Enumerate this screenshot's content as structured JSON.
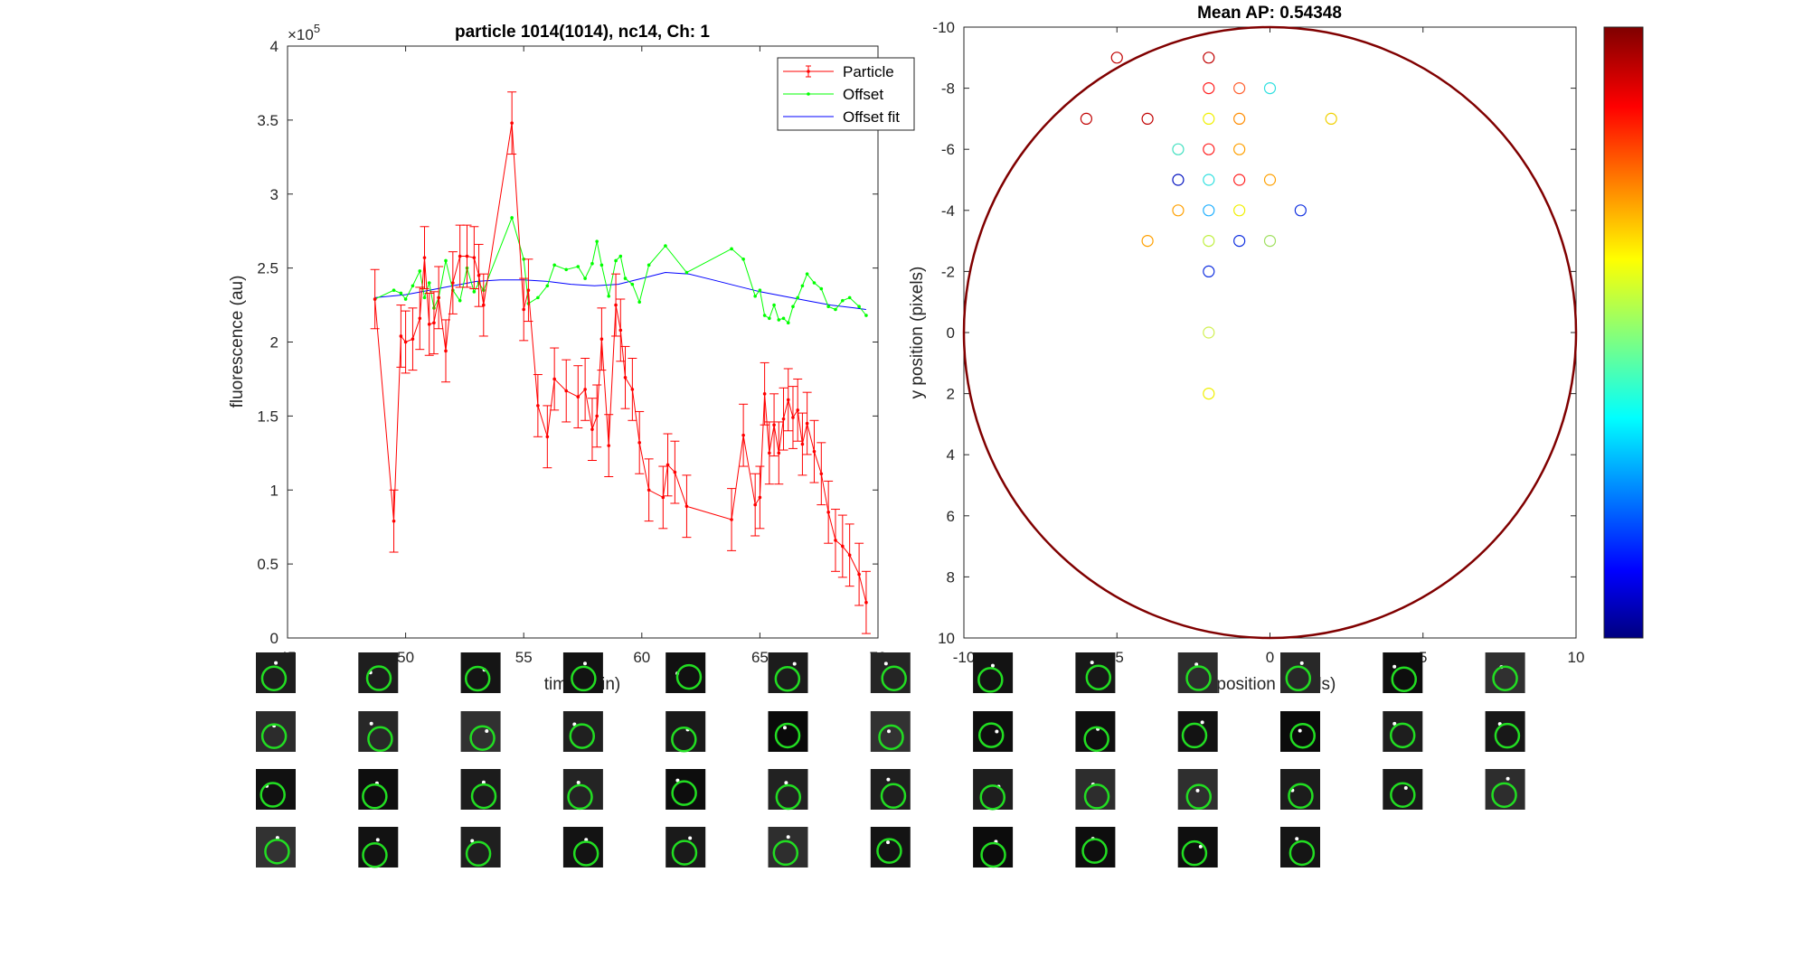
{
  "chart_data": [
    {
      "type": "line",
      "title": "particle 1014(1014), nc14, Ch: 1",
      "xlabel": "time (min)",
      "ylabel": "fluorescence (au)",
      "exponent_label": "×10",
      "exponent_power": "5",
      "xlim": [
        45,
        70
      ],
      "ylim": [
        0,
        4
      ],
      "xticks": [
        "45",
        "50",
        "55",
        "60",
        "65",
        "70"
      ],
      "yticks": [
        "0",
        "0.5",
        "1",
        "1.5",
        "2",
        "2.5",
        "3",
        "3.5",
        "4"
      ],
      "legend_position": "top-right",
      "series": [
        {
          "name": "Particle",
          "color": "#ff0000",
          "marker": "dot-with-errorbars",
          "x": [
            48.7,
            49.5,
            49.8,
            50.0,
            50.3,
            50.6,
            50.8,
            51.0,
            51.2,
            51.4,
            51.7,
            52.0,
            52.3,
            52.6,
            52.9,
            53.1,
            53.3,
            54.5,
            55.0,
            55.2,
            55.6,
            56.0,
            56.3,
            56.8,
            57.3,
            57.6,
            57.9,
            58.1,
            58.3,
            58.6,
            58.9,
            59.1,
            59.3,
            59.6,
            59.9,
            60.3,
            60.9,
            61.1,
            61.4,
            61.9,
            63.8,
            64.3,
            64.8,
            65.0,
            65.2,
            65.4,
            65.6,
            65.8,
            66.0,
            66.2,
            66.4,
            66.6,
            66.8,
            67.0,
            67.3,
            67.6,
            67.9,
            68.2,
            68.5,
            68.8,
            69.2,
            69.5
          ],
          "y": [
            2.29,
            0.79,
            2.04,
            2.0,
            2.02,
            2.16,
            2.57,
            2.12,
            2.13,
            2.3,
            1.94,
            2.4,
            2.58,
            2.58,
            2.57,
            2.45,
            2.25,
            3.48,
            2.22,
            2.35,
            1.57,
            1.36,
            1.75,
            1.67,
            1.63,
            1.68,
            1.41,
            1.5,
            2.02,
            1.3,
            2.25,
            2.08,
            1.76,
            1.68,
            1.32,
            1.0,
            0.95,
            1.17,
            1.12,
            0.89,
            0.8,
            1.37,
            0.9,
            0.95,
            1.65,
            1.25,
            1.44,
            1.25,
            1.48,
            1.61,
            1.49,
            1.54,
            1.31,
            1.45,
            1.26,
            1.11,
            0.85,
            0.66,
            0.62,
            0.56,
            0.43,
            0.24
          ],
          "err": [
            0.2,
            0.21,
            0.21,
            0.21,
            0.21,
            0.21,
            0.21,
            0.21,
            0.21,
            0.21,
            0.21,
            0.21,
            0.21,
            0.21,
            0.21,
            0.21,
            0.21,
            0.21,
            0.21,
            0.21,
            0.21,
            0.21,
            0.21,
            0.21,
            0.21,
            0.21,
            0.21,
            0.21,
            0.21,
            0.21,
            0.21,
            0.21,
            0.21,
            0.21,
            0.21,
            0.21,
            0.21,
            0.21,
            0.21,
            0.21,
            0.21,
            0.21,
            0.21,
            0.21,
            0.21,
            0.21,
            0.21,
            0.21,
            0.21,
            0.21,
            0.21,
            0.21,
            0.21,
            0.21,
            0.21,
            0.21,
            0.21,
            0.21,
            0.21,
            0.21,
            0.21,
            0.21
          ]
        },
        {
          "name": "Offset",
          "color": "#00ff00",
          "marker": "dot",
          "x": [
            48.7,
            49.5,
            49.8,
            50.0,
            50.3,
            50.6,
            50.8,
            51.0,
            51.2,
            51.4,
            51.7,
            52.0,
            52.3,
            52.6,
            52.9,
            53.1,
            53.3,
            54.5,
            55.0,
            55.2,
            55.6,
            56.0,
            56.3,
            56.8,
            57.3,
            57.6,
            57.9,
            58.1,
            58.3,
            58.6,
            58.9,
            59.1,
            59.3,
            59.6,
            59.9,
            60.3,
            61.0,
            61.9,
            63.8,
            64.3,
            64.8,
            65.0,
            65.2,
            65.4,
            65.6,
            65.8,
            66.0,
            66.2,
            66.4,
            66.6,
            66.8,
            67.0,
            67.3,
            67.6,
            67.9,
            68.2,
            68.5,
            68.8,
            69.2,
            69.5
          ],
          "y": [
            2.29,
            2.35,
            2.33,
            2.29,
            2.38,
            2.48,
            2.3,
            2.4,
            2.23,
            2.3,
            2.55,
            2.35,
            2.28,
            2.5,
            2.34,
            2.4,
            2.35,
            2.84,
            2.56,
            2.26,
            2.3,
            2.38,
            2.52,
            2.49,
            2.51,
            2.43,
            2.53,
            2.68,
            2.52,
            2.31,
            2.55,
            2.58,
            2.43,
            2.39,
            2.27,
            2.52,
            2.65,
            2.47,
            2.63,
            2.56,
            2.31,
            2.35,
            2.18,
            2.16,
            2.25,
            2.15,
            2.16,
            2.13,
            2.24,
            2.3,
            2.38,
            2.46,
            2.4,
            2.36,
            2.24,
            2.22,
            2.28,
            2.3,
            2.24,
            2.18
          ]
        },
        {
          "name": "Offset fit",
          "color": "#0000ff",
          "marker": "none",
          "x": [
            48.7,
            50,
            51,
            52,
            53,
            54,
            55,
            56,
            57,
            58,
            59,
            60,
            61,
            62,
            63,
            64,
            65,
            66,
            67,
            68,
            69,
            69.5
          ],
          "y": [
            2.3,
            2.32,
            2.35,
            2.38,
            2.41,
            2.42,
            2.42,
            2.41,
            2.39,
            2.38,
            2.39,
            2.43,
            2.47,
            2.46,
            2.42,
            2.38,
            2.34,
            2.31,
            2.28,
            2.25,
            2.23,
            2.22
          ]
        }
      ]
    },
    {
      "type": "scatter",
      "title": "Mean AP: 0.54348",
      "xlabel": "x position (pixels)",
      "ylabel": "y position (pixels)",
      "xlim": [
        -10,
        10
      ],
      "ylim": [
        10,
        -10
      ],
      "xticks": [
        "-10",
        "-5",
        "0",
        "5",
        "10"
      ],
      "yticks": [
        "-10",
        "-8",
        "-6",
        "-4",
        "-2",
        "0",
        "2",
        "4",
        "6",
        "8",
        "10"
      ],
      "circle_color": "#800000",
      "colorbar": "jet",
      "points": [
        {
          "x": -5,
          "y": -9,
          "color": "#c00000"
        },
        {
          "x": -2,
          "y": -9,
          "color": "#c00000"
        },
        {
          "x": -2,
          "y": -8,
          "color": "#ff2020"
        },
        {
          "x": -1,
          "y": -8,
          "color": "#ff6030"
        },
        {
          "x": 0,
          "y": -8,
          "color": "#30e0e0"
        },
        {
          "x": -6,
          "y": -7,
          "color": "#c00000"
        },
        {
          "x": -4,
          "y": -7,
          "color": "#c00000"
        },
        {
          "x": -2,
          "y": -7,
          "color": "#f0f000"
        },
        {
          "x": -1,
          "y": -7,
          "color": "#ff8c00"
        },
        {
          "x": 2,
          "y": -7,
          "color": "#f0d000"
        },
        {
          "x": -3,
          "y": -6,
          "color": "#40e0c0"
        },
        {
          "x": -2,
          "y": -6,
          "color": "#ff2020"
        },
        {
          "x": -1,
          "y": -6,
          "color": "#ffa000"
        },
        {
          "x": -3,
          "y": -5,
          "color": "#0010c0"
        },
        {
          "x": -2,
          "y": -5,
          "color": "#30e0e0"
        },
        {
          "x": -1,
          "y": -5,
          "color": "#ff2020"
        },
        {
          "x": 0,
          "y": -5,
          "color": "#ffa000"
        },
        {
          "x": -3,
          "y": -4,
          "color": "#ffa000"
        },
        {
          "x": -2,
          "y": -4,
          "color": "#20b0ff"
        },
        {
          "x": -1,
          "y": -4,
          "color": "#f0f000"
        },
        {
          "x": 1,
          "y": -4,
          "color": "#1030e0"
        },
        {
          "x": -4,
          "y": -3,
          "color": "#ffa000"
        },
        {
          "x": -2,
          "y": -3,
          "color": "#c0f040"
        },
        {
          "x": -1,
          "y": -3,
          "color": "#1030e0"
        },
        {
          "x": 0,
          "y": -3,
          "color": "#a0e060"
        },
        {
          "x": -2,
          "y": -2,
          "color": "#1030e0"
        },
        {
          "x": -2,
          "y": 0,
          "color": "#d0f050"
        },
        {
          "x": -2,
          "y": 2,
          "color": "#f0f000"
        }
      ]
    }
  ],
  "thumbnails": {
    "rows": [
      13,
      13,
      13,
      11
    ],
    "ring_color": "#22dd22"
  }
}
